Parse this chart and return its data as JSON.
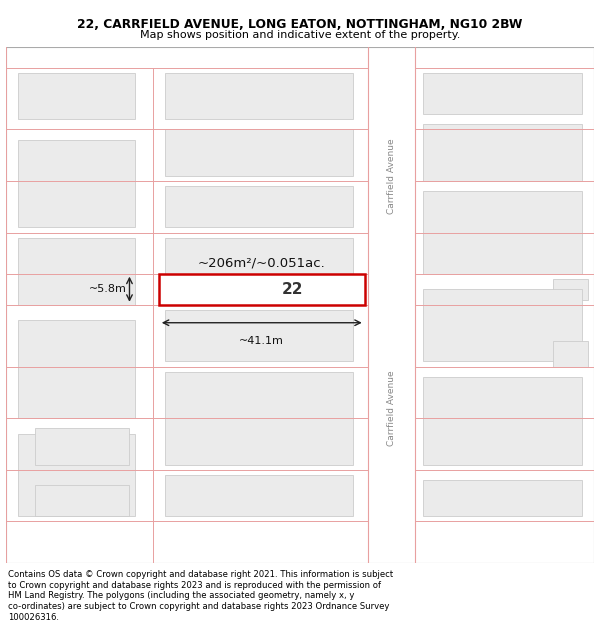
{
  "title_line1": "22, CARRFIELD AVENUE, LONG EATON, NOTTINGHAM, NG10 2BW",
  "title_line2": "Map shows position and indicative extent of the property.",
  "footer_lines": [
    "Contains OS data © Crown copyright and database right 2021. This information is subject",
    "to Crown copyright and database rights 2023 and is reproduced with the permission of",
    "HM Land Registry. The polygons (including the associated geometry, namely x, y",
    "co-ordinates) are subject to Crown copyright and database rights 2023 Ordnance Survey",
    "100026316."
  ],
  "bg_color": "#ffffff",
  "map_bg": "#ffffff",
  "block_fill": "#ebebeb",
  "outer_fill": "#ffffff",
  "road_line_color": "#e8a0a0",
  "highlight_border": "#cc0000",
  "road_label": "Carrfield Avenue",
  "property_label": "22",
  "area_label": "~206m²/~0.051ac.",
  "width_label": "~41.1m",
  "height_label": "~5.8m"
}
